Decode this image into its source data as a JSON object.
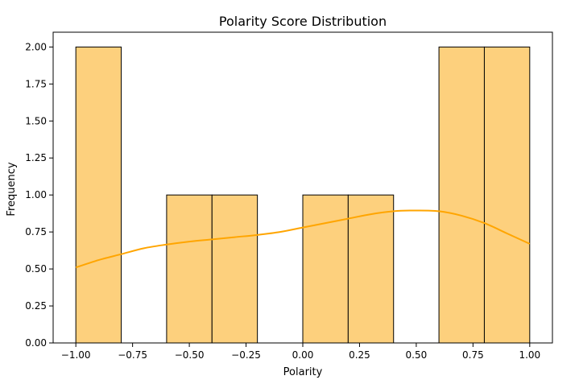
{
  "chart_data": {
    "type": "histogram",
    "title": "Polarity Score Distribution",
    "xlabel": "Polarity",
    "ylabel": "Frequency",
    "xlim": [
      -1.1,
      1.1
    ],
    "ylim": [
      0,
      2.1
    ],
    "xticks": [
      -1.0,
      -0.75,
      -0.5,
      -0.25,
      0.0,
      0.25,
      0.5,
      0.75,
      1.0
    ],
    "xtick_labels": [
      "−1.00",
      "−0.75",
      "−0.50",
      "−0.25",
      "0.00",
      "0.25",
      "0.50",
      "0.75",
      "1.00"
    ],
    "yticks": [
      0.0,
      0.25,
      0.5,
      0.75,
      1.0,
      1.25,
      1.5,
      1.75,
      2.0
    ],
    "ytick_labels": [
      "0.00",
      "0.25",
      "0.50",
      "0.75",
      "1.00",
      "1.25",
      "1.50",
      "1.75",
      "2.00"
    ],
    "bins": [
      {
        "x0": -1.0,
        "x1": -0.8,
        "count": 2
      },
      {
        "x0": -0.8,
        "x1": -0.6,
        "count": 0
      },
      {
        "x0": -0.6,
        "x1": -0.4,
        "count": 1
      },
      {
        "x0": -0.4,
        "x1": -0.2,
        "count": 1
      },
      {
        "x0": -0.2,
        "x1": 0.0,
        "count": 0
      },
      {
        "x0": 0.0,
        "x1": 0.2,
        "count": 1
      },
      {
        "x0": 0.2,
        "x1": 0.4,
        "count": 1
      },
      {
        "x0": 0.4,
        "x1": 0.6,
        "count": 0
      },
      {
        "x0": 0.6,
        "x1": 0.8,
        "count": 2
      },
      {
        "x0": 0.8,
        "x1": 1.0,
        "count": 2
      }
    ],
    "kde": {
      "x": [
        -1.0,
        -0.9,
        -0.8,
        -0.7,
        -0.6,
        -0.5,
        -0.4,
        -0.3,
        -0.2,
        -0.1,
        0.0,
        0.1,
        0.2,
        0.3,
        0.4,
        0.5,
        0.6,
        0.7,
        0.8,
        0.9,
        1.0
      ],
      "y": [
        0.51,
        0.56,
        0.6,
        0.64,
        0.665,
        0.685,
        0.7,
        0.715,
        0.73,
        0.75,
        0.78,
        0.81,
        0.84,
        0.87,
        0.89,
        0.895,
        0.89,
        0.86,
        0.81,
        0.74,
        0.67
      ]
    },
    "colors": {
      "bar_fill": "#fdd07d",
      "kde_line": "#ffa500"
    },
    "grid": false,
    "legend": "none"
  }
}
